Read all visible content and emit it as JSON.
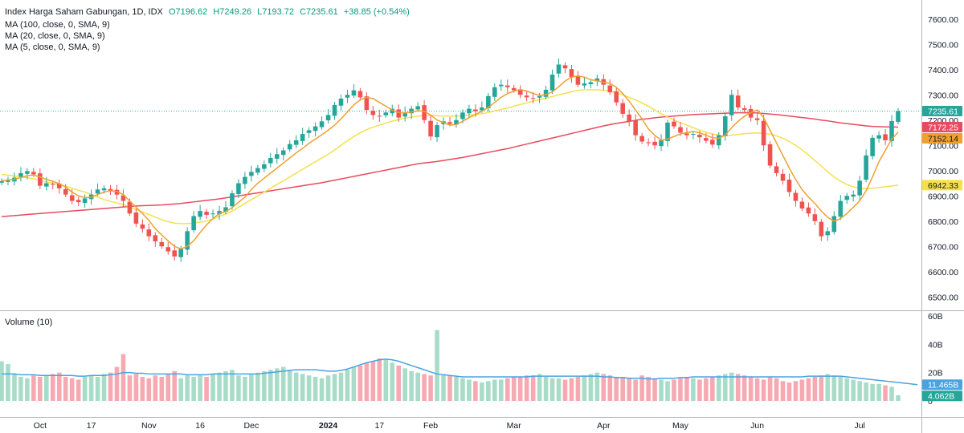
{
  "legend": {
    "title": "Index Harga Saham Gabungan, 1D, IDX",
    "open": "O7196.62",
    "high": "H7249.26",
    "low": "L7193.72",
    "close": "C7235.61",
    "change": "+38.85 (+0.54%)",
    "ma100": "MA (100, close, 0, SMA, 9)",
    "ma20": "MA (20, close, 0, SMA, 9)",
    "ma5": "MA (5, close, 0, SMA, 9)"
  },
  "volume_title": "Volume (10)",
  "colors": {
    "up": "#26a69a",
    "down": "#ef5350",
    "up_vol": "#a8dcc9",
    "down_vol": "#f7a9b2",
    "ma100": "#e84a5f",
    "ma20": "#f5e04c",
    "ma5": "#f0a030",
    "vol_ma": "#4aa3df"
  },
  "chart_data": {
    "type": "candlestick",
    "price_axis": {
      "ylim": [
        6450,
        7650
      ],
      "ticks": [
        "7600.00",
        "7500.00",
        "7400.00",
        "7300.00",
        "7200.00",
        "7100.00",
        "7000.00",
        "6900.00",
        "6800.00",
        "6700.00",
        "6600.00",
        "6500.00"
      ],
      "tick_values": [
        7600,
        7500,
        7400,
        7300,
        7200,
        7100,
        7000,
        6900,
        6800,
        6700,
        6600,
        6500
      ]
    },
    "volume_axis": {
      "ylim": [
        0,
        60
      ],
      "ticks": [
        "60B",
        "40B",
        "20B",
        "0"
      ],
      "tick_values": [
        60,
        40,
        20,
        0
      ]
    },
    "x_axis": {
      "labels": [
        "Oct",
        "17",
        "Nov",
        "16",
        "Dec",
        "2024",
        "17",
        "Feb",
        "Mar",
        "Apr",
        "May",
        "Jun",
        "Jul"
      ],
      "label_index": [
        6,
        14,
        23,
        31,
        39,
        51,
        59,
        67,
        80,
        94,
        106,
        118,
        134
      ]
    },
    "price_labels": [
      {
        "value": "7235.61",
        "y": 7235.61,
        "bg": "#26a69a",
        "fg": "#ffffff"
      },
      {
        "value": "7172.25",
        "y": 7172.25,
        "bg": "#e84a5f",
        "fg": "#ffffff"
      },
      {
        "value": "7152.14",
        "y": 7152.14,
        "bg": "#f0a030",
        "fg": "#131722"
      },
      {
        "value": "6942.33",
        "y": 6942.33,
        "bg": "#f5e04c",
        "fg": "#131722"
      }
    ],
    "volume_labels": [
      {
        "value": "11.465B",
        "y": 11.465,
        "bg": "#4aa3df",
        "fg": "#ffffff"
      },
      {
        "value": "4.062B",
        "y": 4.062,
        "bg": "#26a69a",
        "fg": "#ffffff"
      }
    ],
    "close": [
      6958,
      6960,
      6972,
      6990,
      6998,
      6985,
      6940,
      6950,
      6945,
      6930,
      6905,
      6880,
      6875,
      6890,
      6905,
      6925,
      6930,
      6920,
      6905,
      6880,
      6830,
      6790,
      6770,
      6740,
      6720,
      6700,
      6680,
      6660,
      6690,
      6760,
      6820,
      6840,
      6825,
      6830,
      6840,
      6855,
      6910,
      6950,
      6975,
      6995,
      7010,
      7025,
      7050,
      7065,
      7080,
      7105,
      7120,
      7145,
      7160,
      7175,
      7195,
      7220,
      7260,
      7285,
      7300,
      7318,
      7290,
      7240,
      7220,
      7215,
      7230,
      7245,
      7210,
      7230,
      7245,
      7255,
      7200,
      7135,
      7180,
      7195,
      7185,
      7200,
      7230,
      7245,
      7235,
      7250,
      7295,
      7330,
      7340,
      7330,
      7318,
      7300,
      7290,
      7285,
      7295,
      7320,
      7380,
      7420,
      7405,
      7370,
      7340,
      7345,
      7350,
      7365,
      7340,
      7310,
      7270,
      7225,
      7195,
      7140,
      7115,
      7110,
      7100,
      7120,
      7190,
      7175,
      7150,
      7140,
      7145,
      7132,
      7118,
      7103,
      7140,
      7215,
      7300,
      7250,
      7240,
      7210,
      7200,
      7100,
      7020,
      6990,
      6960,
      6915,
      6880,
      6850,
      6830,
      6800,
      6740,
      6760,
      6820,
      6880,
      6900,
      6905,
      6960,
      7060,
      7130,
      7140,
      7120,
      7196,
      7235.61
    ],
    "ma100": [
      6818,
      6820,
      6822,
      6824,
      6826,
      6828,
      6830,
      6832,
      6834,
      6836,
      6838,
      6840,
      6842,
      6844,
      6846,
      6848,
      6850,
      6852,
      6854,
      6856,
      6858,
      6860,
      6861,
      6862,
      6863,
      6864,
      6866,
      6868,
      6870,
      6873,
      6876,
      6879,
      6882,
      6885,
      6888,
      6892,
      6896,
      6900,
      6904,
      6908,
      6912,
      6916,
      6920,
      6924,
      6928,
      6932,
      6936,
      6940,
      6944,
      6948,
      6952,
      6957,
      6962,
      6967,
      6972,
      6977,
      6982,
      6987,
      6992,
      6997,
      7002,
      7007,
      7012,
      7017,
      7022,
      7027,
      7030,
      7033,
      7036,
      7040,
      7044,
      7048,
      7052,
      7057,
      7062,
      7067,
      7072,
      7077,
      7082,
      7087,
      7093,
      7099,
      7105,
      7111,
      7117,
      7123,
      7129,
      7135,
      7141,
      7147,
      7153,
      7159,
      7165,
      7171,
      7177,
      7182,
      7187,
      7191,
      7195,
      7199,
      7203,
      7206,
      7209,
      7212,
      7214,
      7216,
      7218,
      7220,
      7222,
      7223,
      7224,
      7225,
      7226,
      7227,
      7228,
      7229,
      7229,
      7229,
      7228,
      7226,
      7224,
      7222,
      7219,
      7216,
      7213,
      7210,
      7207,
      7204,
      7200,
      7197,
      7193,
      7189,
      7186,
      7183,
      7180,
      7177,
      7175,
      7174,
      7173,
      7172.5,
      7172.25
    ],
    "ma20": [
      6985,
      6982,
      6978,
      6975,
      6972,
      6968,
      6960,
      6955,
      6950,
      6945,
      6938,
      6930,
      6922,
      6915,
      6905,
      6895,
      6885,
      6878,
      6872,
      6865,
      6856,
      6846,
      6836,
      6826,
      6816,
      6806,
      6798,
      6792,
      6790,
      6790,
      6792,
      6796,
      6800,
      6808,
      6818,
      6828,
      6840,
      6855,
      6870,
      6885,
      6900,
      6915,
      6930,
      6945,
      6960,
      6975,
      6990,
      7005,
      7020,
      7035,
      7050,
      7065,
      7082,
      7100,
      7118,
      7135,
      7150,
      7162,
      7172,
      7180,
      7188,
      7196,
      7202,
      7208,
      7212,
      7216,
      7218,
      7218,
      7217,
      7216,
      7216,
      7216,
      7218,
      7220,
      7222,
      7225,
      7230,
      7236,
      7242,
      7248,
      7255,
      7262,
      7268,
      7275,
      7281,
      7287,
      7293,
      7300,
      7306,
      7312,
      7318,
      7320,
      7320,
      7320,
      7318,
      7314,
      7308,
      7300,
      7290,
      7280,
      7268,
      7255,
      7240,
      7225,
      7212,
      7200,
      7190,
      7180,
      7170,
      7160,
      7152,
      7145,
      7140,
      7138,
      7140,
      7143,
      7146,
      7148,
      7149,
      7148,
      7144,
      7138,
      7128,
      7115,
      7100,
      7082,
      7062,
      7040,
      7018,
      6995,
      6975,
      6958,
      6945,
      6936,
      6930,
      6928,
      6930,
      6933,
      6936,
      6939,
      6942.33
    ],
    "ma5": [
      6960,
      6963,
      6966,
      6972,
      6980,
      6982,
      6975,
      6965,
      6958,
      6948,
      6935,
      6915,
      6900,
      6893,
      6895,
      6905,
      6915,
      6920,
      6918,
      6905,
      6880,
      6855,
      6830,
      6803,
      6770,
      6745,
      6722,
      6700,
      6690,
      6700,
      6722,
      6755,
      6785,
      6810,
      6830,
      6838,
      6853,
      6875,
      6895,
      6925,
      6950,
      6970,
      6990,
      7010,
      7030,
      7050,
      7070,
      7088,
      7108,
      7125,
      7142,
      7160,
      7180,
      7205,
      7232,
      7260,
      7280,
      7290,
      7285,
      7270,
      7255,
      7240,
      7230,
      7228,
      7232,
      7237,
      7235,
      7220,
      7200,
      7190,
      7180,
      7182,
      7195,
      7210,
      7222,
      7235,
      7250,
      7270,
      7290,
      7305,
      7315,
      7320,
      7315,
      7305,
      7298,
      7300,
      7312,
      7332,
      7355,
      7370,
      7375,
      7370,
      7360,
      7355,
      7350,
      7345,
      7330,
      7305,
      7275,
      7240,
      7205,
      7165,
      7140,
      7120,
      7125,
      7135,
      7145,
      7150,
      7155,
      7150,
      7140,
      7130,
      7128,
      7140,
      7170,
      7195,
      7215,
      7230,
      7240,
      7210,
      7160,
      7110,
      7060,
      7010,
      6965,
      6925,
      6895,
      6870,
      6840,
      6815,
      6800,
      6810,
      6830,
      6855,
      6880,
      6920,
      6975,
      7035,
      7080,
      7125,
      7152.14
    ],
    "volume": [
      28,
      26,
      19,
      17,
      16,
      18,
      17,
      18,
      19,
      20,
      17,
      16,
      15,
      17,
      18,
      17,
      19,
      20,
      24,
      33,
      18,
      19,
      17,
      16,
      18,
      17,
      19,
      21,
      16,
      18,
      17,
      18,
      17,
      19,
      20,
      21,
      22,
      18,
      17,
      19,
      20,
      21,
      22,
      23,
      24,
      22,
      20,
      19,
      18,
      17,
      16,
      18,
      19,
      20,
      22,
      24,
      25,
      27,
      28,
      30,
      29,
      27,
      25,
      23,
      21,
      20,
      19,
      18,
      50,
      19,
      18,
      17,
      16,
      15,
      14,
      13,
      14,
      15,
      15,
      16,
      17,
      17,
      18,
      18,
      19,
      17,
      16,
      16,
      15,
      16,
      17,
      18,
      19,
      20,
      19,
      18,
      17,
      17,
      16,
      15,
      18,
      17,
      16,
      15,
      14,
      15,
      16,
      17,
      16,
      15,
      16,
      17,
      18,
      19,
      20,
      19,
      18,
      17,
      16,
      15,
      17,
      16,
      14,
      13,
      14,
      15,
      16,
      17,
      18,
      19,
      18,
      17,
      16,
      15,
      14,
      13,
      12,
      12,
      11,
      10,
      4.062
    ],
    "volume_ma": [
      19,
      19,
      19,
      18.5,
      18.5,
      18.5,
      18,
      18,
      18,
      18,
      18,
      18,
      17.5,
      17.5,
      18,
      18,
      18,
      18.5,
      19,
      20,
      20,
      19.5,
      19.5,
      19,
      19,
      19,
      19,
      19,
      19,
      18.5,
      18.5,
      18.5,
      18.5,
      19,
      19,
      19,
      19,
      19,
      19,
      19,
      19,
      19.5,
      20,
      20.5,
      21,
      21.5,
      22,
      22,
      22,
      22,
      21.5,
      21,
      21,
      21.5,
      22.5,
      24,
      25.5,
      27,
      28,
      29,
      29.5,
      29,
      28,
      26.5,
      25,
      23.5,
      22,
      20.5,
      19,
      18.5,
      18,
      17.5,
      17,
      17,
      17,
      17,
      17,
      17,
      17,
      17,
      17,
      17,
      17,
      17.5,
      17.5,
      17.5,
      17.5,
      17.5,
      17.5,
      17.5,
      17.5,
      17.5,
      17.5,
      17.5,
      17,
      17,
      16.5,
      16.5,
      16,
      16,
      16,
      15.5,
      15.5,
      16,
      16,
      16,
      16.5,
      16.5,
      17,
      17,
      17,
      17,
      17,
      17,
      17,
      17,
      17,
      17,
      17,
      17,
      17,
      17,
      17,
      17,
      17,
      17,
      17.5,
      17.5,
      17.5,
      17.5,
      17.5,
      17.5,
      17,
      16.5,
      16,
      15.5,
      15,
      14.5,
      14,
      13.5,
      13,
      12.5,
      12,
      11.465
    ]
  }
}
